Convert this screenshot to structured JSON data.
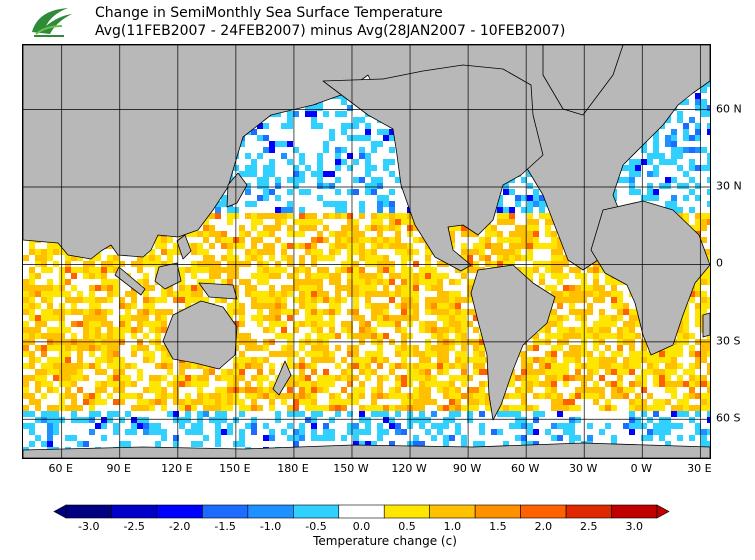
{
  "title": {
    "line1": "Change in SemiMonthly Sea Surface Temperature",
    "line2": "Avg(11FEB2007 - 24FEB2007) minus Avg(28JAN2007 - 10FEB2007)"
  },
  "map": {
    "projection": "equirectangular",
    "lon_range": [
      40,
      395
    ],
    "lat_range": [
      -75,
      85
    ],
    "land_color": "#b8b8b8",
    "ice_color": "#d9d9d9",
    "grid": true
  },
  "lon_labels": [
    "60 E",
    "90 E",
    "120 E",
    "150 E",
    "180 E",
    "150 W",
    "120 W",
    "90 W",
    "60 W",
    "30 W",
    "0 W",
    "30 E"
  ],
  "lat_labels": [
    "60 N",
    "30 N",
    "0",
    "30 S",
    "60 S"
  ],
  "colorbar": {
    "ticks": [
      "-3.0",
      "-2.5",
      "-2.0",
      "-1.5",
      "-1.0",
      "-0.5",
      "0.0",
      "0.5",
      "1.0",
      "1.5",
      "2.0",
      "2.5",
      "3.0"
    ],
    "colors": [
      "#000080",
      "#0000c8",
      "#0000ff",
      "#1e6cff",
      "#1e90ff",
      "#30d0ff",
      "#ffffff",
      "#ffe600",
      "#ffc000",
      "#ff9000",
      "#ff6000",
      "#e02800",
      "#c00000"
    ],
    "unit_label": "Temperature change  (c)"
  }
}
